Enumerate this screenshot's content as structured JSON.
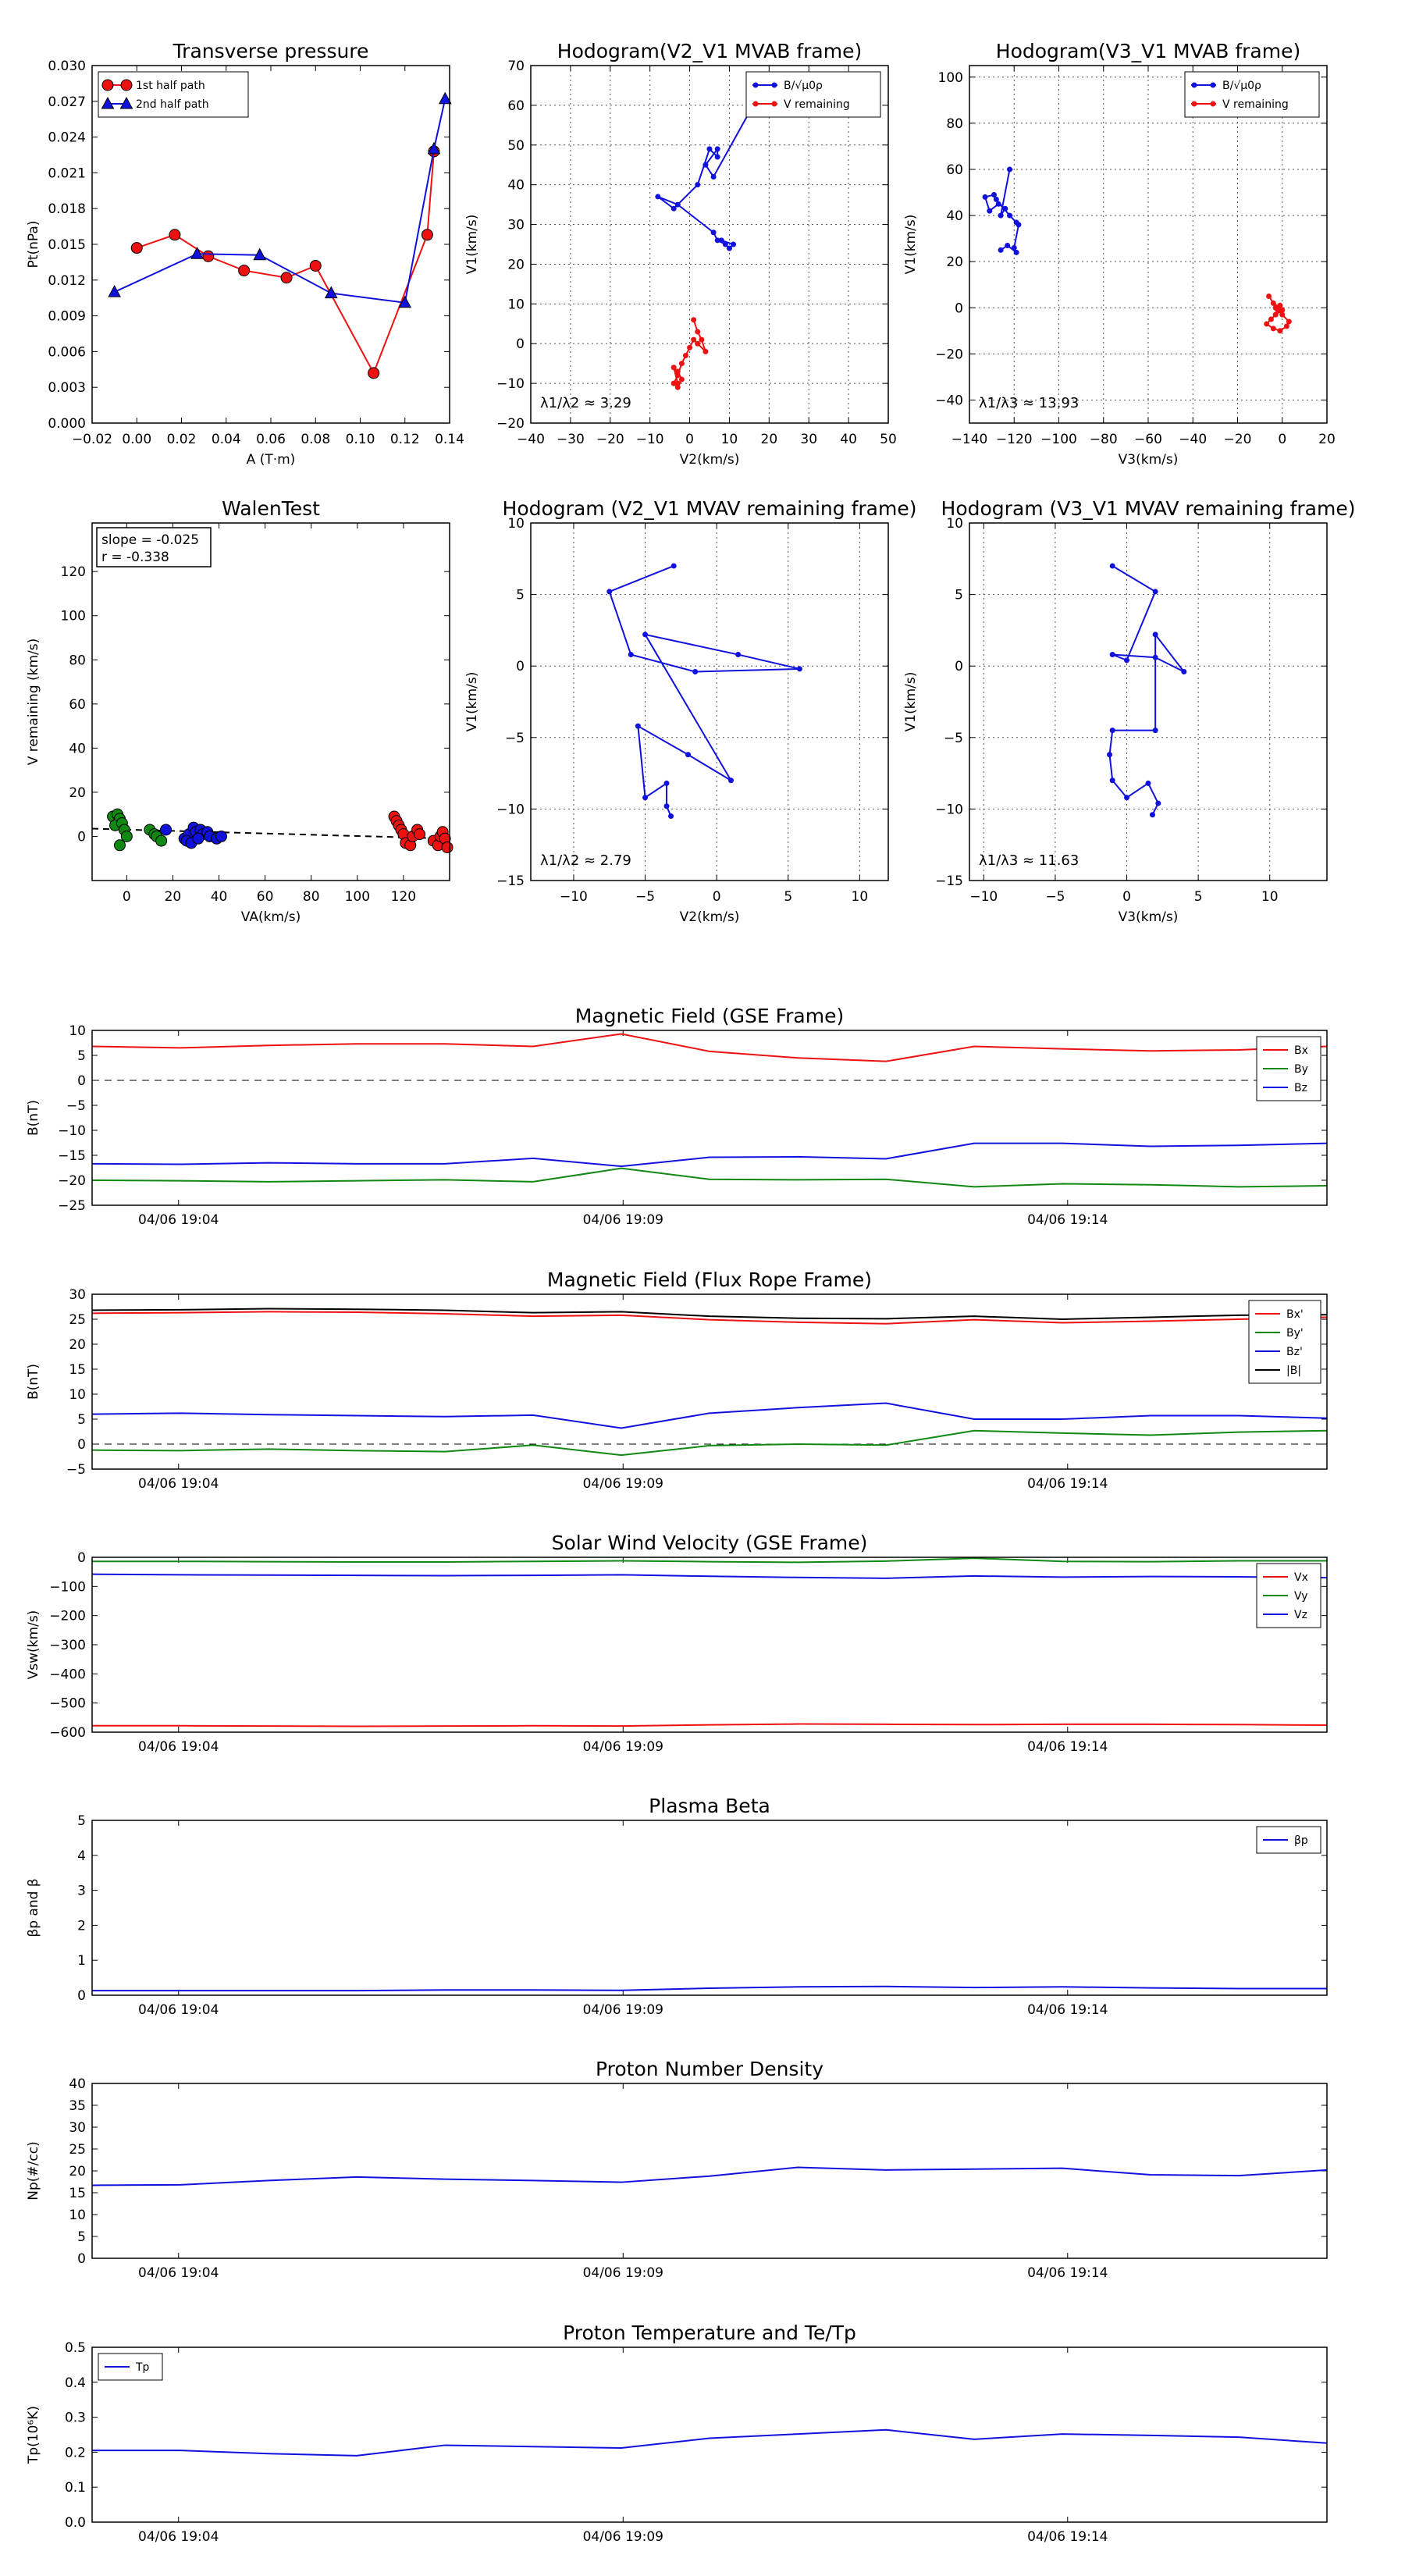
{
  "colors": {
    "red": "#ee1111",
    "green": "#118811",
    "blue": "#1111dd",
    "black": "#000000",
    "grid": "#555555"
  },
  "chart_data": [
    {
      "id": "tp",
      "type": "line",
      "title": "Transverse pressure",
      "xlabel": "A (T·m)",
      "ylabel": "Pt(nPa)",
      "xlim": [
        -0.02,
        0.14
      ],
      "ylim": [
        0.0,
        0.03
      ],
      "xticks": [
        -0.02,
        0.0,
        0.02,
        0.04,
        0.06,
        0.08,
        0.1,
        0.12,
        0.14
      ],
      "xtick_labels": [
        "−0.02",
        "0.00",
        "0.02",
        "0.04",
        "0.06",
        "0.08",
        "0.10",
        "0.12",
        "0.14"
      ],
      "yticks": [
        0,
        0.003,
        0.006,
        0.009,
        0.012,
        0.015,
        0.018,
        0.021,
        0.024,
        0.027,
        0.03
      ],
      "ytick_labels": [
        "0.000",
        "0.003",
        "0.006",
        "0.009",
        "0.012",
        "0.015",
        "0.018",
        "0.021",
        "0.024",
        "0.027",
        "0.030"
      ],
      "grid": false,
      "legend": "top-left",
      "series": [
        {
          "name": "1st half path",
          "color": "#ee1111",
          "marker": "circle",
          "x": [
            0.0,
            0.017,
            0.032,
            0.048,
            0.067,
            0.08,
            0.106,
            0.13,
            0.133
          ],
          "y": [
            0.0147,
            0.0158,
            0.014,
            0.0128,
            0.0122,
            0.0132,
            0.0042,
            0.0158,
            0.0228
          ]
        },
        {
          "name": "2nd half path",
          "color": "#1111dd",
          "marker": "triangle",
          "x": [
            -0.01,
            0.027,
            0.055,
            0.087,
            0.12,
            0.133,
            0.138
          ],
          "y": [
            0.011,
            0.0142,
            0.0141,
            0.0109,
            0.0101,
            0.023,
            0.0272
          ]
        }
      ]
    },
    {
      "id": "h21",
      "type": "line",
      "title": "Hodogram(V2_V1 MVAB frame)",
      "xlabel": "V2(km/s)",
      "ylabel": "V1(km/s)",
      "xlim": [
        -40,
        50
      ],
      "ylim": [
        -20,
        70
      ],
      "xticks": [
        -40,
        -30,
        -20,
        -10,
        0,
        10,
        20,
        30,
        40,
        50
      ],
      "yticks": [
        -20,
        -10,
        0,
        10,
        20,
        30,
        40,
        50,
        60,
        70
      ],
      "grid": true,
      "legend": "top-right",
      "annotation": "λ1/λ2 ≈ 3.29",
      "series": [
        {
          "name": "B/√μ0ρ",
          "color": "#1111dd",
          "marker": "dot",
          "x": [
            16,
            6,
            4,
            7,
            7,
            5,
            2,
            -4,
            -8,
            -3,
            6,
            7,
            9,
            10,
            11,
            8
          ],
          "y": [
            60,
            42,
            45,
            49,
            47,
            49,
            40,
            34,
            37,
            35,
            28,
            26,
            25,
            24,
            25,
            26
          ]
        },
        {
          "name": "V remaining",
          "color": "#ee1111",
          "marker": "dot",
          "x": [
            1,
            2,
            3,
            4,
            2,
            1,
            0,
            -1,
            -2,
            -3,
            -4,
            -3,
            -2,
            -3,
            -4,
            -3
          ],
          "y": [
            6,
            3,
            1,
            -2,
            0,
            1,
            -1,
            -3,
            -5,
            -8,
            -10,
            -11,
            -9,
            -7,
            -6,
            -10
          ]
        }
      ]
    },
    {
      "id": "h31",
      "type": "line",
      "title": "Hodogram(V3_V1 MVAB frame)",
      "xlabel": "V3(km/s)",
      "ylabel": "V1(km/s)",
      "xlim": [
        -140,
        20
      ],
      "ylim": [
        -50,
        105
      ],
      "xticks": [
        -140,
        -120,
        -100,
        -80,
        -60,
        -40,
        -20,
        0,
        20
      ],
      "yticks": [
        -40,
        -20,
        0,
        20,
        40,
        60,
        80,
        100
      ],
      "grid": true,
      "legend": "top-right",
      "annotation": "λ1/λ3 ≈ 13.93",
      "series": [
        {
          "name": "B/√μ0ρ",
          "color": "#1111dd",
          "marker": "dot",
          "x": [
            -122,
            -126,
            -124,
            -127,
            -131,
            -133,
            -129,
            -128,
            -122,
            -119,
            -118,
            -120,
            -119,
            -123,
            -126
          ],
          "y": [
            60,
            40,
            43,
            45,
            42,
            48,
            49,
            47,
            40,
            37,
            36,
            26,
            24,
            27,
            25
          ]
        },
        {
          "name": "V remaining",
          "color": "#ee1111",
          "marker": "dot",
          "x": [
            -6,
            -4,
            -1,
            0,
            -3,
            -5,
            -7,
            -4,
            -1,
            2,
            3,
            0,
            -2,
            -1,
            -3
          ],
          "y": [
            5,
            2,
            0,
            -1,
            -3,
            -5,
            -7,
            -9,
            -10,
            -8,
            -6,
            -3,
            -1,
            1,
            0
          ]
        }
      ]
    },
    {
      "id": "walen",
      "type": "scatter",
      "title": "WalenTest",
      "xlabel": "VA(km/s)",
      "ylabel": "V remaining (km/s)",
      "xlim": [
        -15,
        140
      ],
      "ylim": [
        -20,
        142
      ],
      "xticks": [
        0,
        20,
        40,
        60,
        80,
        100,
        120
      ],
      "yticks": [
        0,
        20,
        40,
        60,
        80,
        100,
        120
      ],
      "grid": false,
      "annotation_lines": [
        "slope = -0.025",
        "r = -0.338"
      ],
      "fit_line": {
        "x": [
          -15,
          140
        ],
        "y": [
          3.5,
          -1
        ]
      },
      "series": [
        {
          "name": "",
          "color": "#118811",
          "marker": "circle",
          "x": [
            -6,
            -4,
            -3,
            -5,
            -2,
            -1,
            0,
            -3,
            10,
            12,
            13,
            15
          ],
          "y": [
            9,
            10,
            8,
            5,
            6,
            3,
            0,
            -4,
            3,
            1,
            0,
            -2
          ]
        },
        {
          "name": "",
          "color": "#1111dd",
          "marker": "circle",
          "x": [
            17,
            25,
            27,
            29,
            30,
            32,
            33,
            35,
            26,
            28,
            31,
            36,
            39,
            41
          ],
          "y": [
            3,
            -1,
            1,
            4,
            2,
            3,
            1,
            2,
            -2,
            -3,
            -1,
            0,
            -1,
            0
          ]
        },
        {
          "name": "",
          "color": "#ee1111",
          "marker": "circle",
          "x": [
            116,
            117,
            118,
            119,
            120,
            121,
            123,
            124,
            126,
            127,
            133,
            135,
            136,
            137,
            138,
            139
          ],
          "y": [
            9,
            7,
            5,
            3,
            1,
            -3,
            -4,
            0,
            3,
            1,
            -2,
            -4,
            0,
            2,
            -1,
            -5
          ]
        }
      ]
    },
    {
      "id": "h21r",
      "type": "line",
      "title": "Hodogram (V2_V1 MVAV remaining frame)",
      "xlabel": "V2(km/s)",
      "ylabel": "V1(km/s)",
      "xlim": [
        -13,
        12
      ],
      "ylim": [
        -15,
        10
      ],
      "xticks": [
        -10,
        -5,
        0,
        5,
        10
      ],
      "yticks": [
        -15,
        -10,
        -5,
        0,
        5,
        10
      ],
      "grid": true,
      "annotation": "λ1/λ2 ≈ 2.79",
      "series": [
        {
          "name": "",
          "color": "#1111dd",
          "marker": "dot",
          "x": [
            -3,
            -7.5,
            -6,
            -1.5,
            5.8,
            1.5,
            -5,
            1,
            -2,
            -5.5,
            -5,
            -3.5,
            -3.5,
            -3.2
          ],
          "y": [
            7,
            5.2,
            0.8,
            -0.4,
            -0.2,
            0.8,
            2.2,
            -8,
            -6.2,
            -4.2,
            -9.2,
            -8.2,
            -9.8,
            -10.5
          ]
        }
      ]
    },
    {
      "id": "h31r",
      "type": "line",
      "title": "Hodogram (V3_V1 MVAV remaining frame)",
      "xlabel": "V3(km/s)",
      "ylabel": "V1(km/s)",
      "xlim": [
        -11,
        14
      ],
      "ylim": [
        -15,
        10
      ],
      "xticks": [
        -10,
        -5,
        0,
        5,
        10
      ],
      "yticks": [
        -15,
        -10,
        -5,
        0,
        5,
        10
      ],
      "grid": true,
      "annotation": "λ1/λ3 ≈ 11.63",
      "series": [
        {
          "name": "",
          "color": "#1111dd",
          "marker": "dot",
          "x": [
            -1,
            2,
            0,
            -1,
            2,
            4,
            2,
            2,
            -1,
            -1.2,
            -1,
            0,
            1.5,
            2.2,
            1.8
          ],
          "y": [
            7,
            5.2,
            0.4,
            0.8,
            0.6,
            -0.4,
            2.2,
            -4.5,
            -4.5,
            -6.2,
            -8,
            -9.2,
            -8.2,
            -9.6,
            -10.4
          ]
        }
      ]
    },
    {
      "id": "bgse",
      "type": "line",
      "title": "Magnetic Field (GSE Frame)",
      "ylabel": "B(nT)",
      "ylim": [
        -25,
        10
      ],
      "yticks": [
        -25,
        -20,
        -15,
        -10,
        -5,
        0,
        5,
        10
      ],
      "xtick_labels": [
        "04/06 19:04",
        "04/06 19:09",
        "04/06 19:14"
      ],
      "legend": "top-right",
      "zero_line": true,
      "series": [
        {
          "name": "Bx",
          "color": "#ee1111",
          "y": [
            6.8,
            6.5,
            7.0,
            7.3,
            7.3,
            6.8,
            9.3,
            5.8,
            4.5,
            3.8,
            6.8,
            6.3,
            5.9,
            6.1,
            6.8
          ]
        },
        {
          "name": "By",
          "color": "#118811",
          "y": [
            -20.0,
            -20.1,
            -20.3,
            -20.1,
            -19.9,
            -20.3,
            -17.6,
            -19.8,
            -19.9,
            -19.8,
            -21.3,
            -20.7,
            -20.9,
            -21.3,
            -21.1
          ]
        },
        {
          "name": "Bz",
          "color": "#1111dd",
          "y": [
            -16.7,
            -16.8,
            -16.5,
            -16.7,
            -16.7,
            -15.6,
            -17.2,
            -15.4,
            -15.3,
            -15.7,
            -12.6,
            -12.6,
            -13.2,
            -13.0,
            -12.6
          ]
        }
      ]
    },
    {
      "id": "bfr",
      "type": "line",
      "title": "Magnetic Field (Flux Rope Frame)",
      "ylabel": "B(nT)",
      "ylim": [
        -5,
        30
      ],
      "yticks": [
        -5,
        0,
        5,
        10,
        15,
        20,
        25,
        30
      ],
      "xtick_labels": [
        "04/06 19:04",
        "04/06 19:09",
        "04/06 19:14"
      ],
      "legend": "top-right",
      "zero_line": true,
      "series": [
        {
          "name": "Bx'",
          "color": "#ee1111",
          "y": [
            26.2,
            26.3,
            26.5,
            26.4,
            26.1,
            25.6,
            25.8,
            24.9,
            24.4,
            24.1,
            24.9,
            24.3,
            24.6,
            25.0,
            25.4
          ]
        },
        {
          "name": "By'",
          "color": "#118811",
          "y": [
            -1.2,
            -1.3,
            -1.0,
            -1.3,
            -1.5,
            -0.2,
            -2.2,
            -0.3,
            0.0,
            -0.2,
            2.7,
            2.2,
            1.8,
            2.4,
            2.7
          ]
        },
        {
          "name": "Bz'",
          "color": "#1111dd",
          "y": [
            6.0,
            6.2,
            5.9,
            5.7,
            5.5,
            5.8,
            3.2,
            6.2,
            7.3,
            8.2,
            5.0,
            5.0,
            5.7,
            5.7,
            5.2
          ]
        },
        {
          "name": "|B|",
          "color": "#000000",
          "y": [
            26.8,
            26.9,
            27.1,
            27.0,
            26.8,
            26.3,
            26.5,
            25.6,
            25.2,
            25.1,
            25.6,
            25.0,
            25.4,
            25.8,
            25.9
          ]
        }
      ]
    },
    {
      "id": "vsw",
      "type": "line",
      "title": "Solar Wind Velocity (GSE Frame)",
      "ylabel": "Vsw(km/s)",
      "ylim": [
        -600,
        0
      ],
      "yticks": [
        -600,
        -500,
        -400,
        -300,
        -200,
        -100,
        0
      ],
      "ytick_labels": [
        "−600",
        "−500",
        "−400",
        "−300",
        "−200",
        "−100",
        "0"
      ],
      "xtick_labels": [
        "04/06 19:04",
        "04/06 19:09",
        "04/06 19:14"
      ],
      "legend": "top-right",
      "series": [
        {
          "name": "Vx",
          "color": "#ee1111",
          "y": [
            -578,
            -578,
            -579,
            -580,
            -579,
            -578,
            -579,
            -575,
            -572,
            -573,
            -574,
            -573,
            -573,
            -574,
            -576
          ]
        },
        {
          "name": "Vy",
          "color": "#118811",
          "y": [
            -14,
            -14,
            -15,
            -16,
            -16,
            -14,
            -12,
            -15,
            -17,
            -13,
            -3,
            -14,
            -15,
            -12,
            -12
          ]
        },
        {
          "name": "Vz",
          "color": "#1111dd",
          "y": [
            -58,
            -60,
            -61,
            -62,
            -63,
            -62,
            -60,
            -65,
            -69,
            -72,
            -64,
            -68,
            -66,
            -67,
            -70
          ]
        }
      ]
    },
    {
      "id": "beta",
      "type": "line",
      "title": "Plasma Beta",
      "ylabel": "βp and β",
      "ylim": [
        0,
        5
      ],
      "yticks": [
        0,
        1,
        2,
        3,
        4,
        5
      ],
      "xtick_labels": [
        "04/06 19:04",
        "04/06 19:09",
        "04/06 19:14"
      ],
      "legend": "top-right",
      "series": [
        {
          "name": "βp",
          "color": "#1111dd",
          "y": [
            0.13,
            0.13,
            0.13,
            0.13,
            0.15,
            0.15,
            0.14,
            0.2,
            0.24,
            0.25,
            0.22,
            0.24,
            0.21,
            0.19,
            0.19
          ]
        }
      ]
    },
    {
      "id": "np",
      "type": "line",
      "title": "Proton Number Density",
      "ylabel": "Np(#/cc)",
      "ylim": [
        0,
        40
      ],
      "yticks": [
        0,
        5,
        10,
        15,
        20,
        25,
        30,
        35,
        40
      ],
      "xtick_labels": [
        "04/06 19:04",
        "04/06 19:09",
        "04/06 19:14"
      ],
      "legend": "none",
      "series": [
        {
          "name": "",
          "color": "#1111dd",
          "y": [
            16.7,
            16.8,
            17.8,
            18.6,
            18.1,
            17.8,
            17.4,
            18.8,
            20.8,
            20.2,
            20.4,
            20.6,
            19.1,
            18.9,
            20.2
          ]
        }
      ]
    },
    {
      "id": "tpr",
      "type": "line",
      "title": "Proton Temperature and Te/Tp",
      "ylabel": "Tp(10⁶K)",
      "ylim": [
        0,
        0.5
      ],
      "yticks": [
        0,
        0.1,
        0.2,
        0.3,
        0.4,
        0.5
      ],
      "ytick_labels": [
        "0.0",
        "0.1",
        "0.2",
        "0.3",
        "0.4",
        "0.5"
      ],
      "xtick_labels": [
        "04/06 19:04",
        "04/06 19:09",
        "04/06 19:14"
      ],
      "legend": "top-left",
      "series": [
        {
          "name": "Tp",
          "color": "#1111dd",
          "y": [
            0.205,
            0.205,
            0.196,
            0.19,
            0.22,
            0.216,
            0.212,
            0.24,
            0.252,
            0.264,
            0.237,
            0.252,
            0.248,
            0.243,
            0.226
          ]
        }
      ]
    }
  ]
}
